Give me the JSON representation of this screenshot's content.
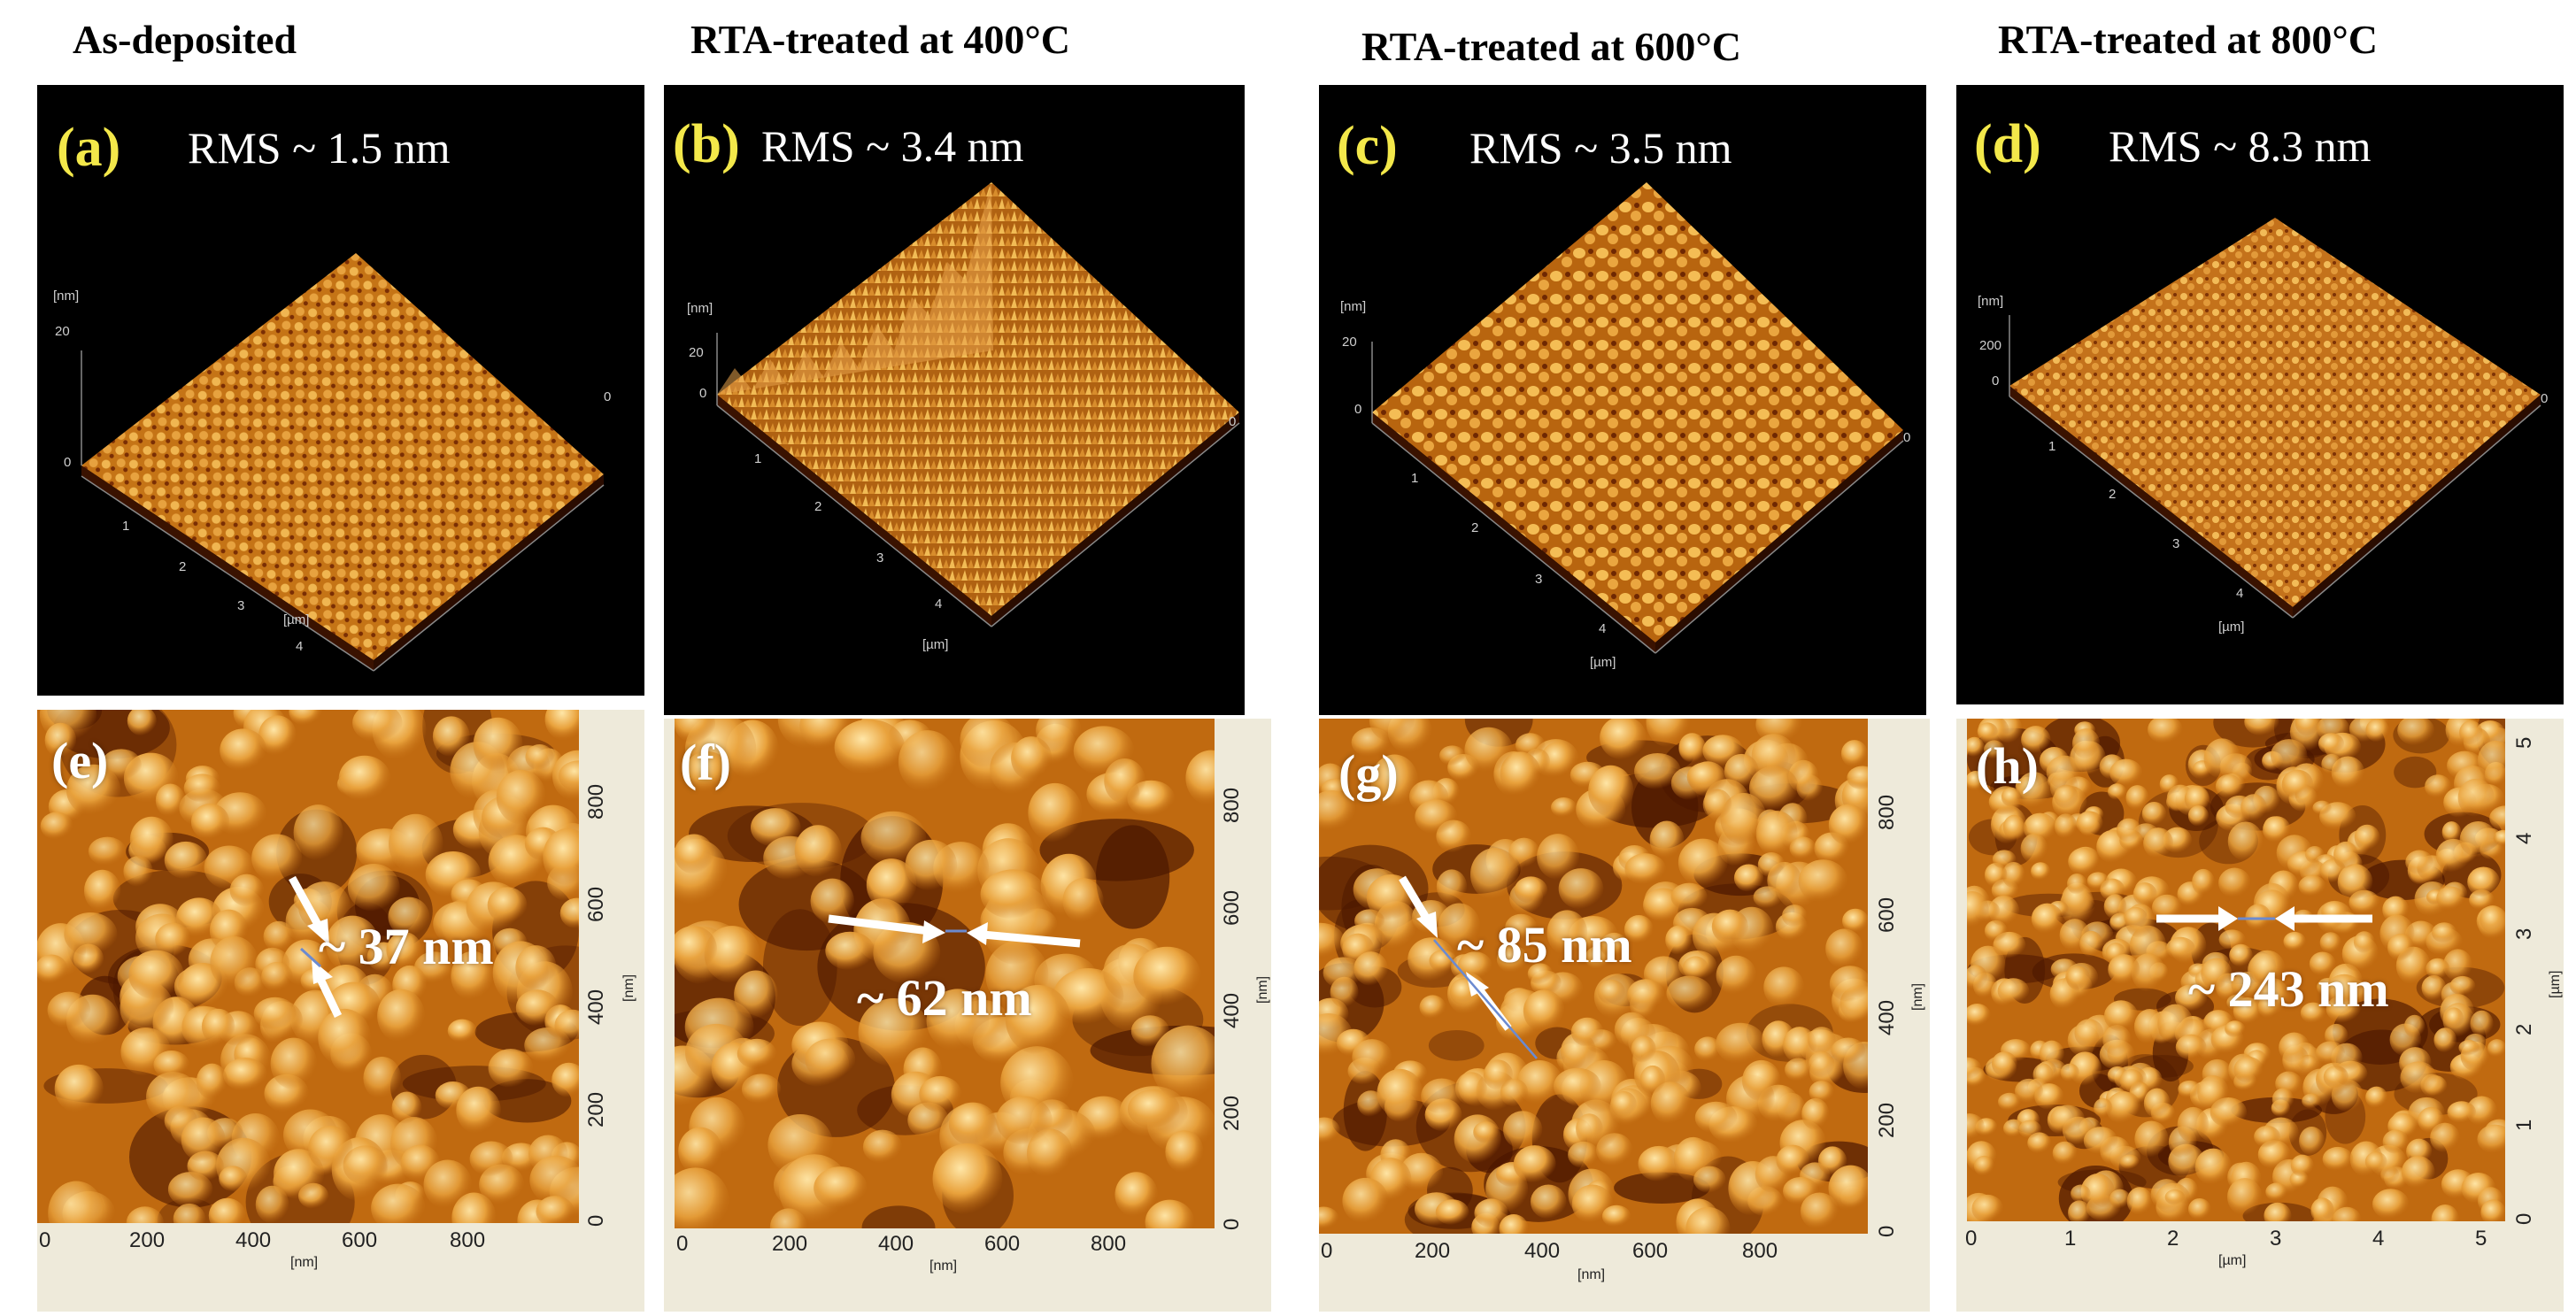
{
  "columns": [
    {
      "title": "As-deposited",
      "top_letter": "(a)",
      "rms": "RMS ~ 1.5 nm",
      "z_tick_top": "20",
      "z_tick_zero": "0",
      "z_unit": "[nm]",
      "xy_ticks": [
        "0",
        "1",
        "2",
        "3",
        "4"
      ],
      "xy_unit": "[µm]",
      "bottom_letter": "(e)",
      "grain_size": "~ 37 nm",
      "x_ticks": [
        "0",
        "200",
        "400",
        "600",
        "800"
      ],
      "x_unit": "[nm]",
      "y_ticks": [
        "0",
        "200",
        "400",
        "600",
        "800"
      ],
      "y_unit": "[nm]"
    },
    {
      "title": "RTA-treated at 400°C",
      "top_letter": "(b)",
      "rms": "RMS ~ 3.4 nm",
      "z_tick_top": "20",
      "z_tick_zero": "0",
      "z_unit": "[nm]",
      "xy_ticks": [
        "0",
        "1",
        "2",
        "3",
        "4"
      ],
      "xy_unit": "[µm]",
      "bottom_letter": "(f)",
      "grain_size": "~ 62 nm",
      "x_ticks": [
        "0",
        "200",
        "400",
        "600",
        "800"
      ],
      "x_unit": "[nm]",
      "y_ticks": [
        "0",
        "200",
        "400",
        "600",
        "800"
      ],
      "y_unit": "[nm]"
    },
    {
      "title": "RTA-treated at 600°C",
      "top_letter": "(c)",
      "rms": "RMS ~ 3.5 nm",
      "z_tick_top": "20",
      "z_tick_zero": "0",
      "z_unit": "[nm]",
      "xy_ticks": [
        "0",
        "1",
        "2",
        "3",
        "4"
      ],
      "xy_unit": "[µm]",
      "bottom_letter": "(g)",
      "grain_size": "~ 85 nm",
      "x_ticks": [
        "0",
        "200",
        "400",
        "600",
        "800"
      ],
      "x_unit": "[nm]",
      "y_ticks": [
        "0",
        "200",
        "400",
        "600",
        "800"
      ],
      "y_unit": "[nm]"
    },
    {
      "title": "RTA-treated at 800°C",
      "top_letter": "(d)",
      "rms": "RMS ~ 8.3 nm",
      "z_tick_top": "200",
      "z_tick_zero": "0",
      "z_unit": "[nm]",
      "xy_ticks": [
        "0",
        "1",
        "2",
        "3",
        "4"
      ],
      "xy_unit": "[µm]",
      "bottom_letter": "(h)",
      "grain_size": "~ 243 nm",
      "x_ticks": [
        "0",
        "1",
        "2",
        "3",
        "4",
        "5"
      ],
      "x_unit": "[µm]",
      "y_ticks": [
        "0",
        "1",
        "2",
        "3",
        "4",
        "5"
      ],
      "y_unit": "[µm]"
    }
  ],
  "colors": {
    "afm_dark": "#4a1600",
    "afm_mid": "#c06a10",
    "afm_light": "#ffe7a8",
    "panel_background": "#000000",
    "label_yellow": "#f3e84a"
  }
}
